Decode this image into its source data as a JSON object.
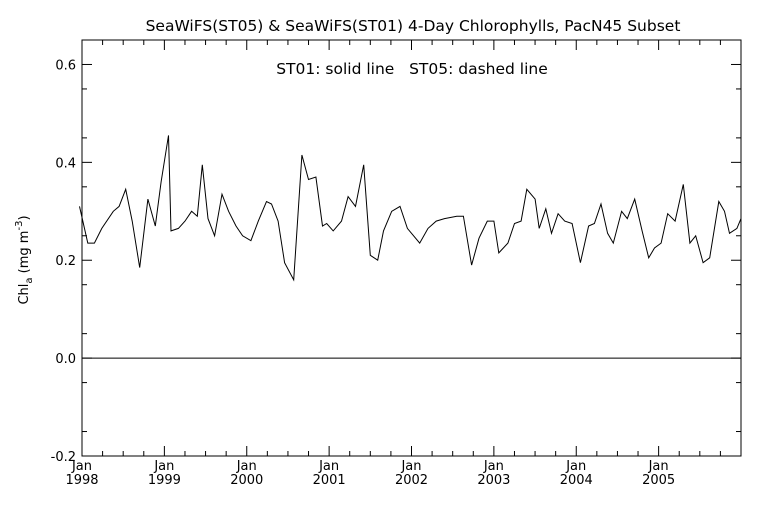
{
  "chart_data": {
    "type": "line",
    "title": "SeaWiFS(ST05) & SeaWiFS(ST01) 4-Day Chlorophylls, PacN45 Subset",
    "annotation": "ST01: solid line   ST05: dashed line",
    "ylabel": {
      "main": "Chl",
      "sub": "a",
      "unit_open": " (mg m",
      "unit_sup": "-3",
      "unit_close": ")"
    },
    "xlabel": "",
    "xlim": [
      1998.0,
      2006.0
    ],
    "ylim": [
      -0.2,
      0.65
    ],
    "grid": false,
    "reference_line": {
      "y": 0.0
    },
    "x_ticks": [
      {
        "x": 1998,
        "month": "Jan",
        "year": "1998"
      },
      {
        "x": 1999,
        "month": "Jan",
        "year": "1999"
      },
      {
        "x": 2000,
        "month": "Jan",
        "year": "2000"
      },
      {
        "x": 2001,
        "month": "Jan",
        "year": "2001"
      },
      {
        "x": 2002,
        "month": "Jan",
        "year": "2002"
      },
      {
        "x": 2003,
        "month": "Jan",
        "year": "2003"
      },
      {
        "x": 2004,
        "month": "Jan",
        "year": "2004"
      },
      {
        "x": 2005,
        "month": "Jan",
        "year": "2005"
      }
    ],
    "y_ticks": [
      {
        "y": -0.2,
        "label": "-0.2"
      },
      {
        "y": 0.0,
        "label": "0.0"
      },
      {
        "y": 0.2,
        "label": "0.2"
      },
      {
        "y": 0.4,
        "label": "0.4"
      },
      {
        "y": 0.6,
        "label": "0.6"
      }
    ],
    "series": [
      {
        "name": "ST01",
        "style": "solid",
        "color": "#000000",
        "points": [
          [
            1997.97,
            0.31
          ],
          [
            1998.07,
            0.235
          ],
          [
            1998.15,
            0.235
          ],
          [
            1998.24,
            0.265
          ],
          [
            1998.38,
            0.3
          ],
          [
            1998.45,
            0.31
          ],
          [
            1998.53,
            0.345
          ],
          [
            1998.61,
            0.28
          ],
          [
            1998.7,
            0.185
          ],
          [
            1998.8,
            0.325
          ],
          [
            1998.89,
            0.27
          ],
          [
            1998.96,
            0.36
          ],
          [
            1999.05,
            0.455
          ],
          [
            1999.08,
            0.26
          ],
          [
            1999.17,
            0.265
          ],
          [
            1999.25,
            0.28
          ],
          [
            1999.33,
            0.3
          ],
          [
            1999.4,
            0.29
          ],
          [
            1999.46,
            0.395
          ],
          [
            1999.53,
            0.285
          ],
          [
            1999.61,
            0.25
          ],
          [
            1999.7,
            0.335
          ],
          [
            1999.78,
            0.3
          ],
          [
            1999.87,
            0.27
          ],
          [
            1999.95,
            0.25
          ],
          [
            2000.05,
            0.24
          ],
          [
            2000.14,
            0.28
          ],
          [
            2000.24,
            0.32
          ],
          [
            2000.3,
            0.315
          ],
          [
            2000.38,
            0.28
          ],
          [
            2000.46,
            0.195
          ],
          [
            2000.57,
            0.16
          ],
          [
            2000.67,
            0.415
          ],
          [
            2000.75,
            0.365
          ],
          [
            2000.84,
            0.37
          ],
          [
            2000.92,
            0.27
          ],
          [
            2000.97,
            0.275
          ],
          [
            2001.05,
            0.26
          ],
          [
            2001.15,
            0.28
          ],
          [
            2001.23,
            0.33
          ],
          [
            2001.32,
            0.31
          ],
          [
            2001.42,
            0.395
          ],
          [
            2001.5,
            0.21
          ],
          [
            2001.59,
            0.2
          ],
          [
            2001.66,
            0.26
          ],
          [
            2001.76,
            0.3
          ],
          [
            2001.86,
            0.31
          ],
          [
            2001.95,
            0.265
          ],
          [
            2002.1,
            0.235
          ],
          [
            2002.2,
            0.265
          ],
          [
            2002.3,
            0.28
          ],
          [
            2002.4,
            0.285
          ],
          [
            2002.55,
            0.29
          ],
          [
            2002.63,
            0.29
          ],
          [
            2002.73,
            0.19
          ],
          [
            2002.82,
            0.245
          ],
          [
            2002.92,
            0.28
          ],
          [
            2003.0,
            0.28
          ],
          [
            2003.06,
            0.215
          ],
          [
            2003.17,
            0.235
          ],
          [
            2003.25,
            0.275
          ],
          [
            2003.33,
            0.28
          ],
          [
            2003.4,
            0.345
          ],
          [
            2003.5,
            0.325
          ],
          [
            2003.55,
            0.265
          ],
          [
            2003.63,
            0.305
          ],
          [
            2003.7,
            0.255
          ],
          [
            2003.78,
            0.295
          ],
          [
            2003.86,
            0.28
          ],
          [
            2003.95,
            0.275
          ],
          [
            2004.05,
            0.195
          ],
          [
            2004.15,
            0.27
          ],
          [
            2004.22,
            0.275
          ],
          [
            2004.3,
            0.315
          ],
          [
            2004.38,
            0.255
          ],
          [
            2004.45,
            0.235
          ],
          [
            2004.55,
            0.3
          ],
          [
            2004.62,
            0.285
          ],
          [
            2004.71,
            0.325
          ],
          [
            2004.8,
            0.26
          ],
          [
            2004.88,
            0.205
          ],
          [
            2004.95,
            0.225
          ],
          [
            2005.03,
            0.235
          ],
          [
            2005.11,
            0.295
          ],
          [
            2005.2,
            0.28
          ],
          [
            2005.3,
            0.355
          ],
          [
            2005.38,
            0.235
          ],
          [
            2005.45,
            0.25
          ],
          [
            2005.54,
            0.195
          ],
          [
            2005.62,
            0.205
          ],
          [
            2005.73,
            0.32
          ],
          [
            2005.8,
            0.3
          ],
          [
            2005.86,
            0.255
          ],
          [
            2005.95,
            0.265
          ],
          [
            2006.0,
            0.285
          ]
        ]
      }
    ]
  }
}
